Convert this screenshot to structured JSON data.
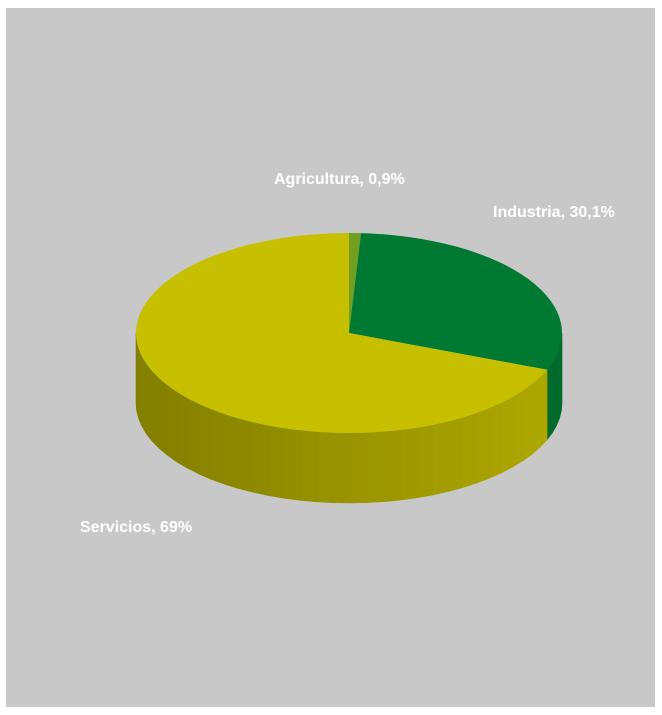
{
  "chart_data": {
    "type": "pie",
    "title": "",
    "three_d": true,
    "background_color": "#c8c8c8",
    "slices": [
      {
        "name": "Agricultura",
        "value": 0.9,
        "label": "Agricultura, 0,9%",
        "color": "#70a020"
      },
      {
        "name": "Industria",
        "value": 30.1,
        "label": "Industria, 30,1%",
        "color": "#007a33"
      },
      {
        "name": "Servicios",
        "value": 69.0,
        "label": "Servicios, 69%",
        "color": "#c6c000"
      }
    ]
  }
}
